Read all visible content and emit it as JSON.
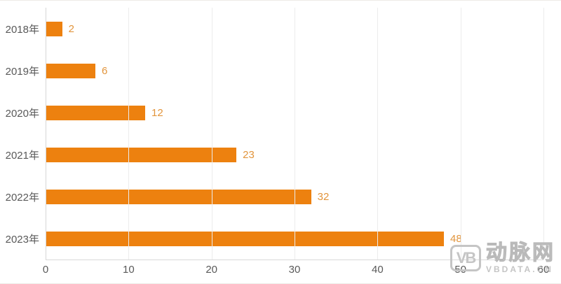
{
  "chart_data": {
    "type": "bar",
    "orientation": "horizontal",
    "title": "",
    "xlabel": "",
    "ylabel": "",
    "categories": [
      "2018年",
      "2019年",
      "2020年",
      "2021年",
      "2022年",
      "2023年"
    ],
    "values": [
      2,
      6,
      12,
      23,
      32,
      48
    ],
    "xlim": [
      0,
      60
    ],
    "x_ticks": [
      0,
      10,
      20,
      30,
      40,
      50,
      60
    ],
    "grid": "vertical-on",
    "legend": "none",
    "bar_color": "#ed810f",
    "value_label_color": "#e2953c",
    "axis_text_color": "#595959",
    "gridline_color": "#ececec"
  },
  "watermark": {
    "logo_text": "VB",
    "brand_name": "动脉网",
    "brand_url": "VBDATA.CN"
  }
}
